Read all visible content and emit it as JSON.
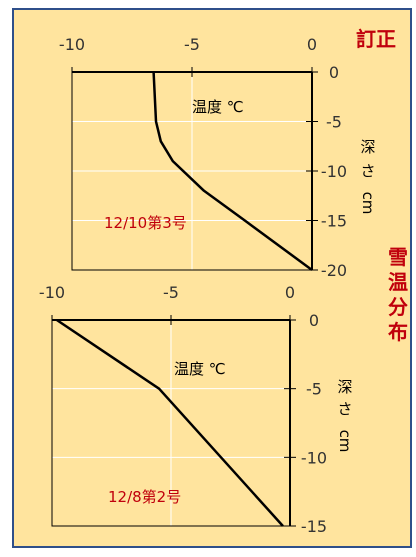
{
  "correction_label": "訂正",
  "side_title_chars": [
    "雪",
    "温",
    "分",
    "布"
  ],
  "colors": {
    "panel": "#ffe49e",
    "border": "#2f4f8a",
    "accent": "#c0000c",
    "grid": "#ffffff"
  },
  "chart_data": [
    {
      "type": "line",
      "issue": "12/10第3号",
      "inner_label": "温度 ℃",
      "ylabel_chars": [
        "深",
        "さ",
        "cm"
      ],
      "x_ticks": [
        "-10",
        "-5",
        "0"
      ],
      "y_ticks": [
        "0",
        "-5",
        "-10",
        "-15",
        "-20"
      ],
      "xlim": [
        -10,
        0
      ],
      "ylim": [
        -20,
        0
      ],
      "grid": true,
      "series": [
        {
          "x": [
            -6.6,
            -6.5,
            -6.3,
            -5.8,
            -4.5,
            -2.8,
            0
          ],
          "y": [
            0,
            -5,
            -7,
            -9,
            -12,
            -15,
            -20
          ]
        }
      ]
    },
    {
      "type": "line",
      "issue": "12/8第2号",
      "inner_label": "温度 ℃",
      "ylabel_chars": [
        "深",
        "さ",
        "cm"
      ],
      "x_ticks": [
        "-10",
        "-5",
        "0"
      ],
      "y_ticks": [
        "0",
        "-5",
        "-10",
        "-15"
      ],
      "xlim": [
        -10,
        0
      ],
      "ylim": [
        -15,
        0
      ],
      "grid": true,
      "series": [
        {
          "x": [
            -9.8,
            -5.5,
            -0.3
          ],
          "y": [
            0,
            -5,
            -15
          ]
        }
      ]
    }
  ]
}
